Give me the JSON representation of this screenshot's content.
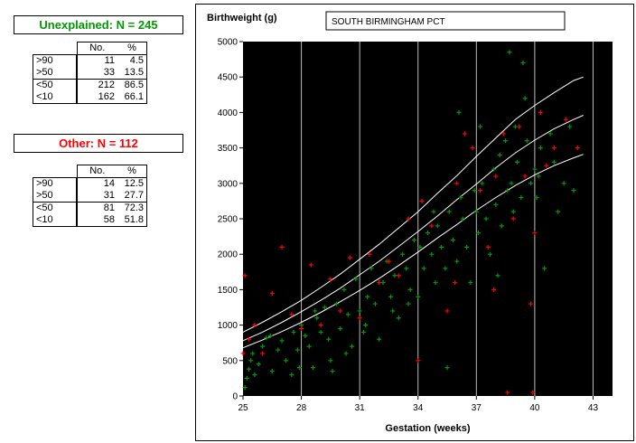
{
  "colors": {
    "unexplained": "#009900",
    "other": "#ff0000",
    "plot_bg": "#000000",
    "gridline": "#bbbbbb",
    "centile_line": "#ffffff"
  },
  "panels": {
    "unexplained": {
      "title": "Unexplained: N = 245",
      "headers": [
        "",
        "No.",
        "%"
      ],
      "rows": [
        {
          "label": ">90",
          "no": "11",
          "pct": "4.5"
        },
        {
          "label": ">50",
          "no": "33",
          "pct": "13.5"
        },
        {
          "label": "<50",
          "no": "212",
          "pct": "86.5"
        },
        {
          "label": "<10",
          "no": "162",
          "pct": "66.1"
        }
      ]
    },
    "other": {
      "title": "Other: N = 112",
      "headers": [
        "",
        "No.",
        "%"
      ],
      "rows": [
        {
          "label": ">90",
          "no": "14",
          "pct": "12.5"
        },
        {
          "label": ">50",
          "no": "31",
          "pct": "27.7"
        },
        {
          "label": "<50",
          "no": "81",
          "pct": "72.3"
        },
        {
          "label": "<10",
          "no": "58",
          "pct": "51.8"
        }
      ]
    }
  },
  "chart_data": {
    "type": "scatter",
    "title": "SOUTH BIRMINGHAM PCT",
    "xlabel": "Gestation (weeks)",
    "ylabel": "Birthweight (g)",
    "xlim": [
      25,
      44
    ],
    "ylim": [
      0,
      5000
    ],
    "x_ticks": [
      "25",
      "28",
      "31",
      "34",
      "37",
      "40",
      "43"
    ],
    "y_ticks": [
      "0",
      "500",
      "1000",
      "1500",
      "2000",
      "2500",
      "3000",
      "3500",
      "4000",
      "4500",
      "5000"
    ],
    "grid": "vertical",
    "marker": "+",
    "centile_curves": [
      {
        "x": [
          25,
          26,
          27,
          28,
          29,
          30,
          31,
          32,
          33,
          34,
          35,
          36,
          37,
          38,
          39,
          40,
          41,
          42,
          42.5
        ],
        "values": [
          900,
          1040,
          1190,
          1350,
          1530,
          1720,
          1930,
          2140,
          2370,
          2600,
          2860,
          3110,
          3380,
          3640,
          3900,
          4100,
          4280,
          4450,
          4500
        ]
      },
      {
        "x": [
          25,
          26,
          27,
          28,
          29,
          30,
          31,
          32,
          33,
          34,
          35,
          36,
          37,
          38,
          39,
          40,
          41,
          42,
          42.5
        ],
        "values": [
          780,
          900,
          1040,
          1190,
          1350,
          1520,
          1710,
          1900,
          2110,
          2320,
          2540,
          2770,
          2990,
          3220,
          3430,
          3610,
          3770,
          3900,
          3960
        ]
      },
      {
        "x": [
          25,
          26,
          27,
          28,
          29,
          30,
          31,
          32,
          33,
          34,
          35,
          36,
          37,
          38,
          39,
          40,
          41,
          42,
          42.5
        ],
        "values": [
          680,
          790,
          910,
          1040,
          1180,
          1330,
          1490,
          1660,
          1840,
          2030,
          2230,
          2420,
          2620,
          2800,
          2970,
          3120,
          3250,
          3360,
          3410
        ]
      }
    ],
    "series": [
      {
        "name": "Unexplained",
        "color": "#009900",
        "points": [
          [
            25.1,
            120
          ],
          [
            25.2,
            250
          ],
          [
            25.3,
            380
          ],
          [
            25.4,
            500
          ],
          [
            25.5,
            600
          ],
          [
            25.6,
            300
          ],
          [
            25.8,
            450
          ],
          [
            26,
            700
          ],
          [
            26.2,
            820
          ],
          [
            26.5,
            350
          ],
          [
            26.8,
            650
          ],
          [
            27,
            780
          ],
          [
            27.2,
            500
          ],
          [
            27.5,
            300
          ],
          [
            27.6,
            900
          ],
          [
            27.8,
            650
          ],
          [
            28,
            1000
          ],
          [
            28.2,
            850
          ],
          [
            28.4,
            700
          ],
          [
            28.6,
            400
          ],
          [
            28.8,
            1100
          ],
          [
            29,
            900
          ],
          [
            29.2,
            1250
          ],
          [
            29.4,
            800
          ],
          [
            29.6,
            350
          ],
          [
            29.8,
            1300
          ],
          [
            30,
            950
          ],
          [
            30.2,
            1500
          ],
          [
            30.4,
            1150
          ],
          [
            30.6,
            700
          ],
          [
            30.8,
            1650
          ],
          [
            31,
            1200
          ],
          [
            31.2,
            900
          ],
          [
            31.4,
            1400
          ],
          [
            31.6,
            1800
          ],
          [
            31.8,
            1300
          ],
          [
            32,
            800
          ],
          [
            32.2,
            1600
          ],
          [
            32.4,
            1900
          ],
          [
            32.6,
            1400
          ],
          [
            32.8,
            1700
          ],
          [
            33,
            1100
          ],
          [
            33.2,
            2000
          ],
          [
            33.4,
            1800
          ],
          [
            33.6,
            1500
          ],
          [
            33.8,
            2200
          ],
          [
            34,
            1400
          ],
          [
            34.1,
            2100
          ],
          [
            34.3,
            1800
          ],
          [
            34.5,
            2300
          ],
          [
            34.7,
            2000
          ],
          [
            34.9,
            1600
          ],
          [
            35,
            2400
          ],
          [
            35.2,
            2100
          ],
          [
            35.4,
            1800
          ],
          [
            35.6,
            2600
          ],
          [
            35.8,
            2200
          ],
          [
            36,
            1900
          ],
          [
            36.2,
            2800
          ],
          [
            36.3,
            2500
          ],
          [
            36.5,
            2100
          ],
          [
            36.7,
            1600
          ],
          [
            36.9,
            2900
          ],
          [
            37,
            2600
          ],
          [
            37.1,
            2300
          ],
          [
            37.3,
            3000
          ],
          [
            37.5,
            2500
          ],
          [
            37.7,
            2000
          ],
          [
            37.9,
            3200
          ],
          [
            38,
            2700
          ],
          [
            38.2,
            3400
          ],
          [
            38.3,
            2400
          ],
          [
            38.5,
            3600
          ],
          [
            38.6,
            2900
          ],
          [
            38.8,
            3000
          ],
          [
            38.9,
            2600
          ],
          [
            39,
            3800
          ],
          [
            39.1,
            3300
          ],
          [
            39.3,
            2800
          ],
          [
            39.5,
            4200
          ],
          [
            39.6,
            3600
          ],
          [
            39.8,
            3000
          ],
          [
            40,
            3200
          ],
          [
            40.1,
            2800
          ],
          [
            40.3,
            3500
          ],
          [
            40.5,
            1800
          ],
          [
            40.8,
            3700
          ],
          [
            41,
            3300
          ],
          [
            41.2,
            2600
          ],
          [
            41.5,
            3000
          ],
          [
            41.8,
            3800
          ],
          [
            42,
            2900
          ],
          [
            35.5,
            400
          ],
          [
            36.1,
            4000
          ],
          [
            37.2,
            3800
          ],
          [
            38.1,
            1700
          ],
          [
            38.7,
            4850
          ],
          [
            39.4,
            4700
          ],
          [
            40.2,
            3100
          ],
          [
            34.8,
            2600
          ],
          [
            33.5,
            1300
          ],
          [
            32.7,
            1200
          ],
          [
            31.3,
            1000
          ],
          [
            30.3,
            600
          ],
          [
            29.5,
            500
          ],
          [
            28.7,
            1200
          ],
          [
            27.9,
            400
          ],
          [
            26.4,
            850
          ]
        ]
      },
      {
        "name": "Other",
        "color": "#ff0000",
        "points": [
          [
            25,
            600
          ],
          [
            25.1,
            1700
          ],
          [
            25.3,
            800
          ],
          [
            25.6,
            1000
          ],
          [
            26,
            600
          ],
          [
            26.5,
            1450
          ],
          [
            27,
            2100
          ],
          [
            27.5,
            1150
          ],
          [
            28,
            950
          ],
          [
            28.5,
            1850
          ],
          [
            29,
            1000
          ],
          [
            29.5,
            1650
          ],
          [
            30,
            1200
          ],
          [
            30.5,
            1950
          ],
          [
            31,
            1100
          ],
          [
            31.5,
            2000
          ],
          [
            32,
            1600
          ],
          [
            32.5,
            1900
          ],
          [
            33,
            1700
          ],
          [
            33.5,
            2500
          ],
          [
            34,
            500
          ],
          [
            34.2,
            2750
          ],
          [
            34.7,
            2400
          ],
          [
            35.5,
            1200
          ],
          [
            36,
            3000
          ],
          [
            36.4,
            3700
          ],
          [
            36.8,
            3500
          ],
          [
            37.2,
            2900
          ],
          [
            37.6,
            2100
          ],
          [
            38,
            3100
          ],
          [
            38.4,
            3700
          ],
          [
            38.9,
            2500
          ],
          [
            39.2,
            3800
          ],
          [
            39.5,
            3100
          ],
          [
            39.8,
            1300
          ],
          [
            40,
            2300
          ],
          [
            40.3,
            4000
          ],
          [
            40.6,
            3250
          ],
          [
            41,
            3500
          ],
          [
            41.6,
            3900
          ],
          [
            42.2,
            3500
          ],
          [
            38.6,
            50
          ],
          [
            39.9,
            50
          ],
          [
            35.9,
            1600
          ],
          [
            37.9,
            1500
          ]
        ]
      }
    ]
  }
}
